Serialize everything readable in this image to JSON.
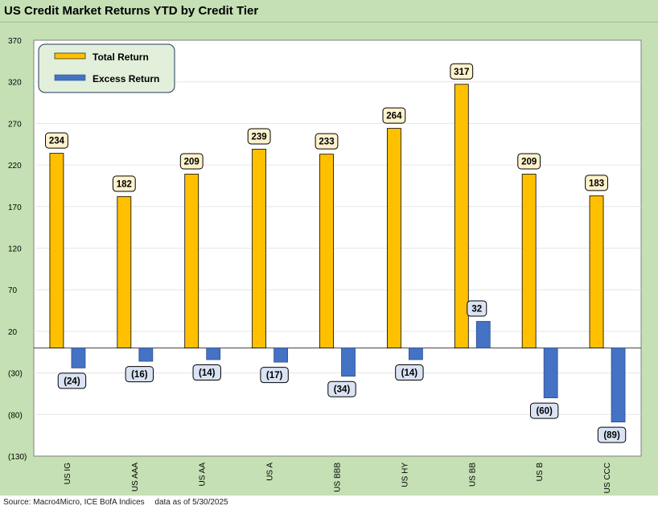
{
  "page": {
    "title": "US Credit Market Returns YTD by Credit Tier",
    "source": "Source: Macro4Micro, ICE BofA Indices",
    "data_as_of": "data as of 5/30/2025"
  },
  "colors": {
    "frame": "#c5e0b4",
    "total": "#ffc000",
    "excess": "#4472c4",
    "label_total_fill": "#fff2cc",
    "label_excess_fill": "#dae3f3",
    "legend_fill": "#e2efda"
  },
  "chart_data": {
    "type": "bar",
    "title": "US Credit Market Returns YTD by Credit Tier",
    "categories": [
      "US IG",
      "US AAA",
      "US AA",
      "US A",
      "US BBB",
      "US HY",
      "US BB",
      "US B",
      "US CCC"
    ],
    "series": [
      {
        "name": "Total Return",
        "values": [
          234,
          182,
          209,
          239,
          233,
          264,
          317,
          209,
          183
        ],
        "labels": [
          "234",
          "182",
          "209",
          "239",
          "233",
          "264",
          "317",
          "209",
          "183"
        ]
      },
      {
        "name": "Excess Return",
        "values": [
          -24,
          -16,
          -14,
          -17,
          -34,
          -14,
          32,
          -60,
          -89
        ],
        "labels": [
          "(24)",
          "(16)",
          "(14)",
          "(17)",
          "(34)",
          "(14)",
          "32",
          "(60)",
          "(89)"
        ]
      }
    ],
    "ylim": [
      -130,
      370
    ],
    "yticks": [
      370,
      320,
      270,
      220,
      170,
      120,
      70,
      20,
      -30,
      -80,
      -130
    ],
    "ytick_labels": [
      "370",
      "320",
      "270",
      "220",
      "170",
      "120",
      "70",
      "20",
      "(30)",
      "(80)",
      "(130)"
    ],
    "legend_position": "top-left",
    "grid": true,
    "xlabel": "",
    "ylabel": ""
  }
}
